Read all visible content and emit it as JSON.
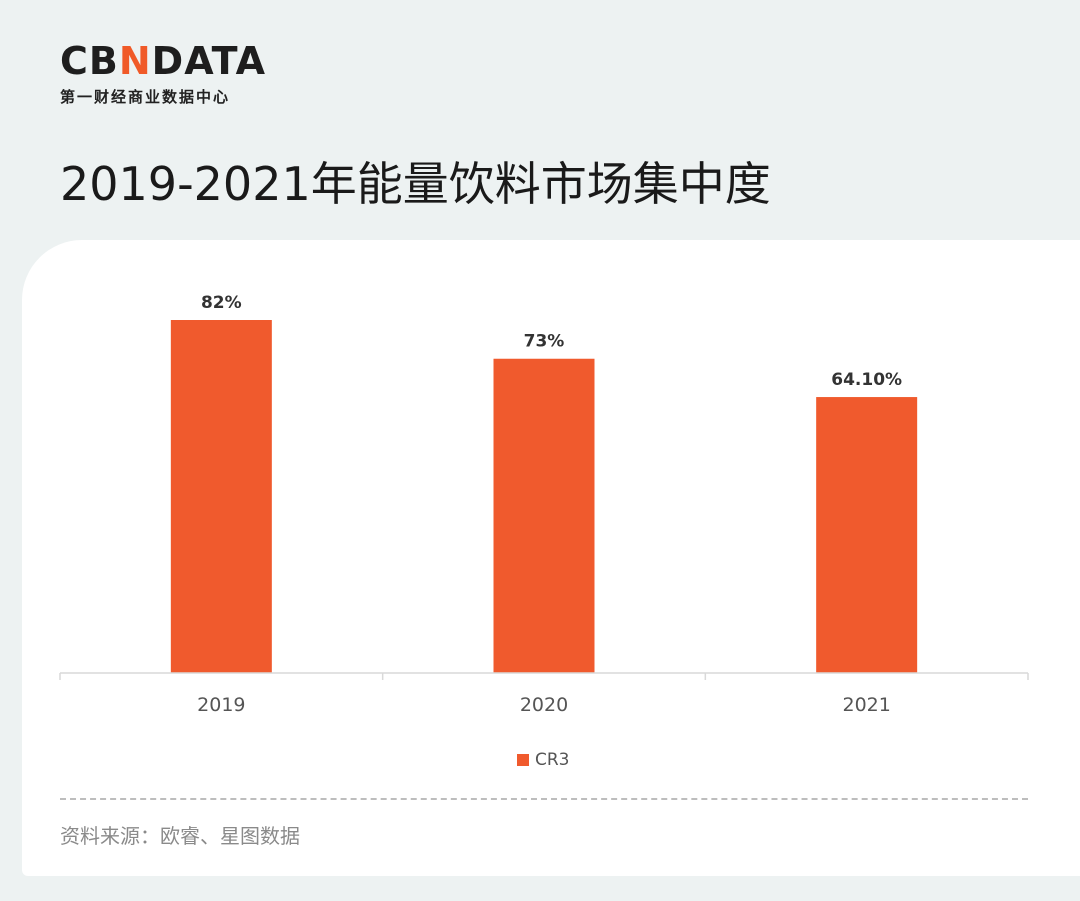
{
  "brand": {
    "logo_prefix": "CB",
    "logo_accent": "N",
    "logo_suffix": "DATA",
    "tagline": "第一财经商业数据中心"
  },
  "page_title": "2019-2021年能量饮料市场集中度",
  "chart_data": {
    "type": "bar",
    "categories": [
      "2019",
      "2020",
      "2021"
    ],
    "series": [
      {
        "name": "CR3",
        "values": [
          82,
          73,
          64.1
        ],
        "labels": [
          "82%",
          "73%",
          "64.10%"
        ],
        "color": "#f05a2d"
      }
    ],
    "ylim": [
      0,
      82
    ],
    "grid": false,
    "legend_position": "bottom"
  },
  "source": "资料来源：欧睿、星图数据",
  "colors": {
    "accent": "#f05a28",
    "bar": "#f05a2d",
    "background": "#edf2f2"
  }
}
